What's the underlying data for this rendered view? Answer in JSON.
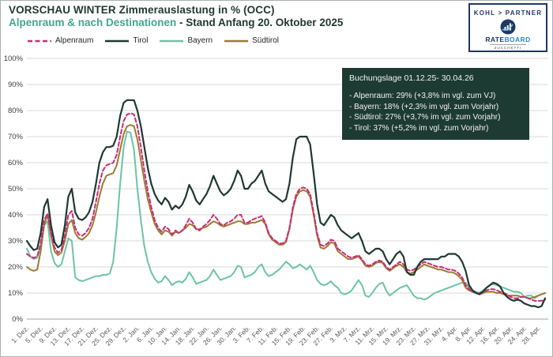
{
  "header": {
    "title_line1": "VORSCHAU WINTER Zimmerauslastung in % (OCC)",
    "title_line2_accent": "Alpenraum & nach Destinationen",
    "title_line2_rest": " - Stand Anfang 20. Oktober 2025"
  },
  "branding": {
    "partner_logo": "KOHL > PARTNER",
    "rateboard_part1": "RATE",
    "rateboard_part2": "BOARD",
    "zucchetti": "ZUCCHETTI"
  },
  "info_box": {
    "bg_color": "#1d3b33",
    "title": "Buchungslage  01.12.25- 30.04.26",
    "lines": [
      "- Alpenraum:  29% (+3,8% im vgl. zum VJ)",
      "- Bayern:  18% (+2,3% im vgl. zum Vorjahr)",
      "- Südtirol: 27% (+3,7% im vgl. zum Vorjahr)",
      "- Tirol:  37% (+5,2% im vgl. zum Vorjahr)"
    ]
  },
  "chart_data": {
    "type": "line",
    "title": "VORSCHAU WINTER Zimmerauslastung in % (OCC)",
    "subtitle": "Alpenraum & nach Destinationen - Stand Anfang 20. Oktober 2025",
    "grid": true,
    "legend_position": "top-left",
    "y_axis": {
      "min": 0,
      "max": 100,
      "step": 10,
      "tick_suffix": "%"
    },
    "x_tick_interval_days": 4,
    "x_tick_labels": [
      "1. Dez.",
      "5. Dez.",
      "9. Dez.",
      "13. Dez.",
      "17. Dez.",
      "21. Dez.",
      "25. Dez.",
      "29. Dez.",
      "2. Jan.",
      "6. Jan.",
      "10. Jan.",
      "14. Jan.",
      "18. Jan.",
      "22. Jan.",
      "26. Jan.",
      "30. Jan.",
      "3. Feb.",
      "7. Feb.",
      "11. Feb.",
      "15. Feb.",
      "19. Feb.",
      "23. Feb.",
      "27. Feb.",
      "3. Mrz.",
      "7. Mrz.",
      "11. Mrz.",
      "15. Mrz.",
      "19. Mrz.",
      "23. Mrz.",
      "27. Mrz.",
      "31. Mrz.",
      "4. Apr.",
      "8. Apr.",
      "12. Apr.",
      "16. Apr.",
      "20. Apr.",
      "24. Apr.",
      "28. Apr."
    ],
    "series": [
      {
        "name": "Alpenraum",
        "key": "alpenraum",
        "color": "#c92c76",
        "dashed": true,
        "width": 2,
        "values": [
          25,
          24,
          23.5,
          24,
          29,
          38,
          40.5,
          33,
          27.5,
          25.5,
          26.5,
          32,
          40,
          41.5,
          35,
          32.5,
          32,
          33,
          35,
          38.5,
          45,
          52,
          57,
          59,
          59.5,
          60,
          63,
          70,
          76,
          78.5,
          79,
          78.5,
          74,
          66,
          57,
          49,
          43,
          38,
          35,
          33.5,
          35.5,
          34.5,
          32.5,
          34,
          33,
          34,
          36,
          38.5,
          37,
          34.5,
          34,
          35.5,
          36.5,
          38,
          40,
          38.5,
          36.5,
          36,
          37,
          37.5,
          38.5,
          40,
          40,
          37,
          37,
          38,
          38.5,
          39,
          39.5,
          37,
          33,
          31,
          30,
          29,
          29,
          30,
          35,
          43,
          48,
          50,
          50.5,
          50,
          48,
          41,
          33,
          28.5,
          28,
          29,
          30.5,
          30,
          27,
          26,
          25,
          24,
          23.5,
          24,
          24.5,
          23,
          21,
          20.5,
          21,
          22,
          22.5,
          22,
          20,
          19,
          20,
          21,
          22,
          21,
          19,
          18.5,
          19,
          20,
          21,
          22,
          21.5,
          21,
          20.5,
          20,
          20,
          19.5,
          19,
          19,
          18.5,
          17.5,
          16,
          13,
          11.5,
          10.5,
          10,
          10,
          10.5,
          11,
          11.5,
          11.5,
          11,
          10.5,
          10,
          9.5,
          8.5,
          8,
          8,
          8.5,
          8.5,
          8,
          7.5,
          7,
          7,
          7,
          7.5
        ]
      },
      {
        "name": "Tirol",
        "key": "tirol",
        "color": "#1e3932",
        "dashed": false,
        "width": 2.2,
        "values": [
          30,
          28,
          26.5,
          27,
          33,
          43,
          46,
          36,
          29.5,
          27.5,
          28.5,
          36,
          47,
          50,
          41,
          38.5,
          38,
          39,
          41,
          45,
          52,
          60,
          64,
          66,
          66,
          66.5,
          70,
          78,
          83,
          84,
          84,
          84,
          80,
          74,
          66,
          58,
          52,
          48,
          45.5,
          44,
          46.5,
          45,
          42,
          43.5,
          42.5,
          44,
          47,
          51.5,
          49,
          45.5,
          44,
          46,
          48,
          51,
          55,
          52,
          49,
          47.5,
          48.5,
          50,
          53,
          57,
          55,
          50,
          50,
          52,
          53,
          55,
          57,
          52,
          49,
          48,
          47,
          46,
          45,
          46,
          52,
          62,
          69,
          70,
          70,
          70,
          67,
          56,
          44,
          37,
          36,
          38,
          40,
          39,
          36,
          34,
          33,
          32,
          31,
          32,
          33,
          30,
          26,
          25,
          26,
          27,
          27,
          26,
          23,
          21,
          23,
          25,
          26,
          24,
          18,
          17,
          17,
          20,
          22,
          23,
          23,
          23,
          23,
          23,
          24,
          24,
          25,
          25,
          25,
          24,
          22,
          18.5,
          13,
          11,
          10,
          9.5,
          10.5,
          12,
          13,
          14,
          13.5,
          12.5,
          10,
          8.5,
          7.5,
          7,
          7.5,
          7,
          6,
          5.5,
          5,
          5,
          4.5,
          5,
          8
        ]
      },
      {
        "name": "Bayern",
        "key": "bayern",
        "color": "#6cc3a6",
        "dashed": false,
        "width": 2,
        "values": [
          27,
          24,
          23,
          23.5,
          28,
          36,
          37.5,
          26,
          21.5,
          20,
          21,
          26,
          31,
          30,
          16,
          15,
          14.5,
          15,
          15.5,
          16,
          16.5,
          16.5,
          17,
          17,
          17.5,
          22,
          35,
          52,
          66,
          72,
          71.5,
          65,
          50,
          38,
          28,
          22,
          18,
          15.5,
          14,
          14.5,
          16.5,
          15,
          13,
          14,
          14.5,
          14,
          15.5,
          18,
          16,
          13.5,
          14,
          14.5,
          15,
          16.5,
          19,
          17,
          15,
          15.5,
          16,
          16.5,
          18,
          20.5,
          20,
          16,
          16.5,
          17,
          18,
          20,
          21,
          18,
          16.5,
          17,
          18,
          19,
          20.5,
          22,
          21,
          19.5,
          20,
          21,
          20,
          19,
          20.5,
          18,
          15,
          13.5,
          13,
          13.5,
          14.5,
          13,
          12,
          10,
          9.5,
          10,
          11,
          13,
          15,
          13,
          9,
          8.5,
          10,
          12,
          13.5,
          14,
          11,
          9,
          10,
          11,
          12,
          12.5,
          13,
          11,
          9,
          8,
          8,
          7.5,
          8,
          9,
          10,
          10.5,
          11,
          11.5,
          12,
          12.5,
          13,
          13.5,
          14,
          14,
          12,
          11,
          10.5,
          10,
          11,
          12,
          13,
          13.5,
          13,
          12.5,
          12,
          11.5,
          11,
          10.5,
          10.5,
          10,
          8.5,
          9,
          9,
          8,
          9,
          9.5,
          10
        ]
      },
      {
        "name": "Südtirol",
        "key": "suedtirol",
        "color": "#9c7b33",
        "dashed": false,
        "width": 2,
        "values": [
          20,
          19,
          18.5,
          19,
          26,
          36,
          40,
          32,
          26,
          24.5,
          25.5,
          30,
          36.5,
          38,
          33,
          31,
          30.5,
          31.5,
          33,
          36,
          41,
          47,
          52,
          55,
          55.5,
          56,
          59,
          65,
          71,
          74,
          74.5,
          74,
          69,
          61,
          53,
          46,
          41,
          36.5,
          34,
          32.5,
          34,
          33.5,
          32,
          33.5,
          33,
          34,
          35,
          36.5,
          36,
          34.5,
          34.5,
          35,
          35.5,
          36.5,
          37.5,
          37,
          36,
          35.5,
          36,
          36.5,
          37,
          37.5,
          37.5,
          36.5,
          36.5,
          37,
          37,
          37.5,
          38,
          36.5,
          32.5,
          30.5,
          29.5,
          28.5,
          28.5,
          29.5,
          34.5,
          42,
          47,
          49,
          49.5,
          49,
          47,
          40,
          32,
          27.5,
          27,
          28,
          29.5,
          29,
          26,
          25,
          24,
          23,
          23,
          23.5,
          24,
          22.5,
          20.5,
          20,
          20.5,
          21.5,
          22,
          21.5,
          19.5,
          18.5,
          19.5,
          20.5,
          21,
          20,
          18,
          17.5,
          18,
          19,
          20,
          21,
          20.5,
          20,
          19.5,
          19,
          19,
          18.5,
          18,
          18,
          17.5,
          16.5,
          15,
          12,
          11,
          10.5,
          10,
          9.5,
          10,
          10.5,
          10.5,
          10.5,
          10,
          10,
          9.5,
          9,
          9,
          9,
          9,
          8.5,
          8.5,
          8,
          8,
          8.5,
          9,
          9.5,
          10
        ]
      }
    ]
  }
}
